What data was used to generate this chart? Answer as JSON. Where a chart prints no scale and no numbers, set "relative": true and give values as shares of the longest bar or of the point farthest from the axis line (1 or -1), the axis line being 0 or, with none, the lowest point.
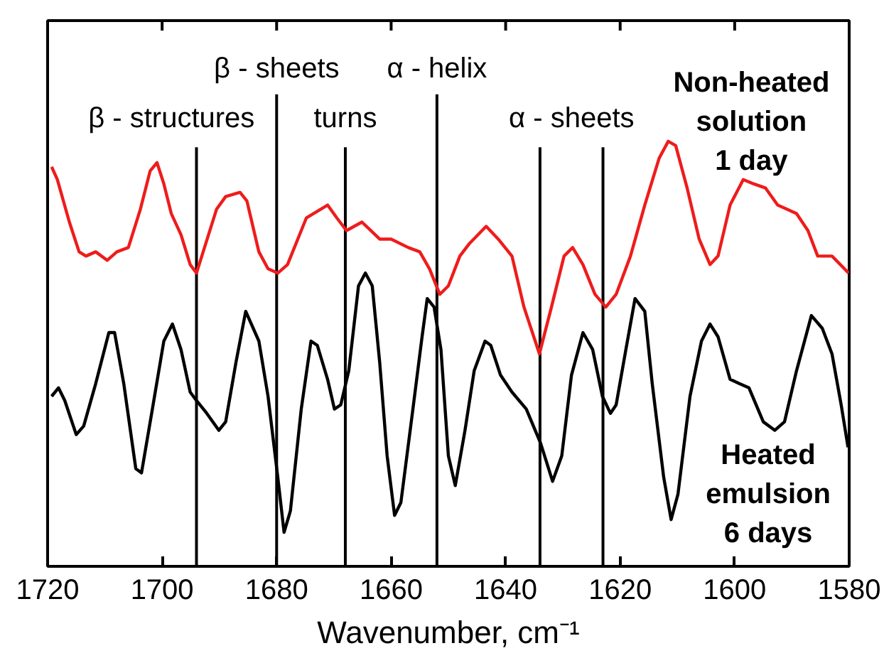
{
  "chart_data": {
    "type": "line",
    "relative": true,
    "xlabel": "Wavenumber, cm⁻¹",
    "xlim": [
      1720,
      1580
    ],
    "xticks": [
      1720,
      1700,
      1680,
      1660,
      1640,
      1620,
      1600,
      1580
    ],
    "series": [
      {
        "name": "Non-heated\nsolution\n1 day",
        "color": "#ee1c1c",
        "x": [
          1719.3,
          1718.3,
          1716.2,
          1714.5,
          1713.3,
          1711.6,
          1709.6,
          1707.9,
          1705.9,
          1703.8,
          1702.1,
          1700.9,
          1699.7,
          1698.4,
          1696.7,
          1695.1,
          1694.0,
          1692.6,
          1690.5,
          1688.9,
          1686.4,
          1685.2,
          1683.1,
          1681.5,
          1679.8,
          1678.1,
          1674.8,
          1671.1,
          1669.5,
          1667.8,
          1665.1,
          1662.0,
          1660.0,
          1657.0,
          1655.0,
          1653.3,
          1651.5,
          1650.0,
          1648.0,
          1646.3,
          1643.4,
          1641.3,
          1638.9,
          1636.8,
          1634.1,
          1632.0,
          1629.8,
          1628.3,
          1626.5,
          1624.4,
          1622.5,
          1620.7,
          1618.2,
          1615.7,
          1613.2,
          1611.6,
          1610.3,
          1608.3,
          1606.2,
          1604.3,
          1602.9,
          1600.8,
          1598.5,
          1596.7,
          1594.6,
          1592.5,
          1589.2,
          1587.2,
          1585.5,
          1583.0,
          1580.1
        ],
        "values": [
          0.94,
          0.91,
          0.81,
          0.74,
          0.73,
          0.74,
          0.72,
          0.74,
          0.75,
          0.84,
          0.93,
          0.95,
          0.9,
          0.83,
          0.78,
          0.71,
          0.69,
          0.75,
          0.84,
          0.87,
          0.88,
          0.86,
          0.74,
          0.7,
          0.69,
          0.71,
          0.82,
          0.85,
          0.82,
          0.79,
          0.81,
          0.77,
          0.77,
          0.75,
          0.74,
          0.7,
          0.64,
          0.66,
          0.73,
          0.76,
          0.8,
          0.77,
          0.73,
          0.61,
          0.5,
          0.61,
          0.73,
          0.75,
          0.71,
          0.64,
          0.61,
          0.64,
          0.73,
          0.85,
          0.96,
          1.0,
          0.99,
          0.89,
          0.77,
          0.71,
          0.73,
          0.85,
          0.91,
          0.9,
          0.89,
          0.85,
          0.83,
          0.79,
          0.73,
          0.73,
          0.69
        ]
      },
      {
        "name": "Heated\nemulsion\n6 days",
        "color": "#000000",
        "x": [
          1719.3,
          1718.1,
          1717.0,
          1715.0,
          1713.7,
          1711.6,
          1709.3,
          1708.3,
          1706.7,
          1704.6,
          1703.6,
          1701.7,
          1699.7,
          1698.2,
          1696.7,
          1695.1,
          1694.0,
          1692.2,
          1690.1,
          1688.9,
          1687.1,
          1685.4,
          1683.1,
          1681.5,
          1679.8,
          1678.7,
          1677.6,
          1675.7,
          1674.0,
          1672.9,
          1671.1,
          1669.9,
          1668.8,
          1667.4,
          1665.7,
          1664.5,
          1663.3,
          1662.0,
          1660.7,
          1659.4,
          1658.3,
          1656.2,
          1654.6,
          1653.7,
          1652.5,
          1651.3,
          1650.0,
          1648.8,
          1647.1,
          1645.5,
          1643.6,
          1642.6,
          1640.9,
          1638.9,
          1636.4,
          1633.9,
          1631.8,
          1630.2,
          1628.5,
          1626.5,
          1624.8,
          1623.1,
          1621.7,
          1620.7,
          1619.0,
          1617.4,
          1615.7,
          1614.4,
          1612.4,
          1611.1,
          1609.9,
          1607.8,
          1605.8,
          1604.3,
          1602.9,
          1600.8,
          1599.2,
          1597.5,
          1595.0,
          1593.0,
          1591.3,
          1589.2,
          1586.6,
          1584.7,
          1583.0,
          1581.4,
          1580.2
        ],
        "values": [
          0.4,
          0.42,
          0.39,
          0.31,
          0.33,
          0.43,
          0.55,
          0.55,
          0.43,
          0.23,
          0.22,
          0.37,
          0.53,
          0.57,
          0.51,
          0.41,
          0.39,
          0.36,
          0.32,
          0.34,
          0.48,
          0.6,
          0.53,
          0.4,
          0.21,
          0.08,
          0.13,
          0.37,
          0.53,
          0.52,
          0.44,
          0.37,
          0.38,
          0.46,
          0.66,
          0.69,
          0.66,
          0.48,
          0.26,
          0.12,
          0.15,
          0.37,
          0.54,
          0.63,
          0.61,
          0.51,
          0.26,
          0.19,
          0.32,
          0.46,
          0.53,
          0.52,
          0.45,
          0.41,
          0.37,
          0.29,
          0.2,
          0.26,
          0.45,
          0.55,
          0.51,
          0.4,
          0.36,
          0.38,
          0.51,
          0.63,
          0.6,
          0.43,
          0.21,
          0.11,
          0.17,
          0.4,
          0.53,
          0.57,
          0.54,
          0.44,
          0.43,
          0.42,
          0.34,
          0.32,
          0.34,
          0.46,
          0.59,
          0.56,
          0.5,
          0.38,
          0.28
        ]
      }
    ],
    "ref_lines": [
      {
        "axis": "x",
        "value": 1694,
        "label": "β - structures",
        "color": "#000000"
      },
      {
        "axis": "x",
        "value": 1680,
        "label": "β - sheets",
        "color": "#000000"
      },
      {
        "axis": "x",
        "value": 1668,
        "label": "turns",
        "color": "#000000"
      },
      {
        "axis": "x",
        "value": 1652,
        "label": "α - helix",
        "color": "#000000"
      },
      {
        "axis": "x",
        "value": 1634,
        "label": "α - sheets",
        "color": "#000000"
      },
      {
        "axis": "x",
        "value": 1623,
        "color": "#000000"
      }
    ]
  }
}
